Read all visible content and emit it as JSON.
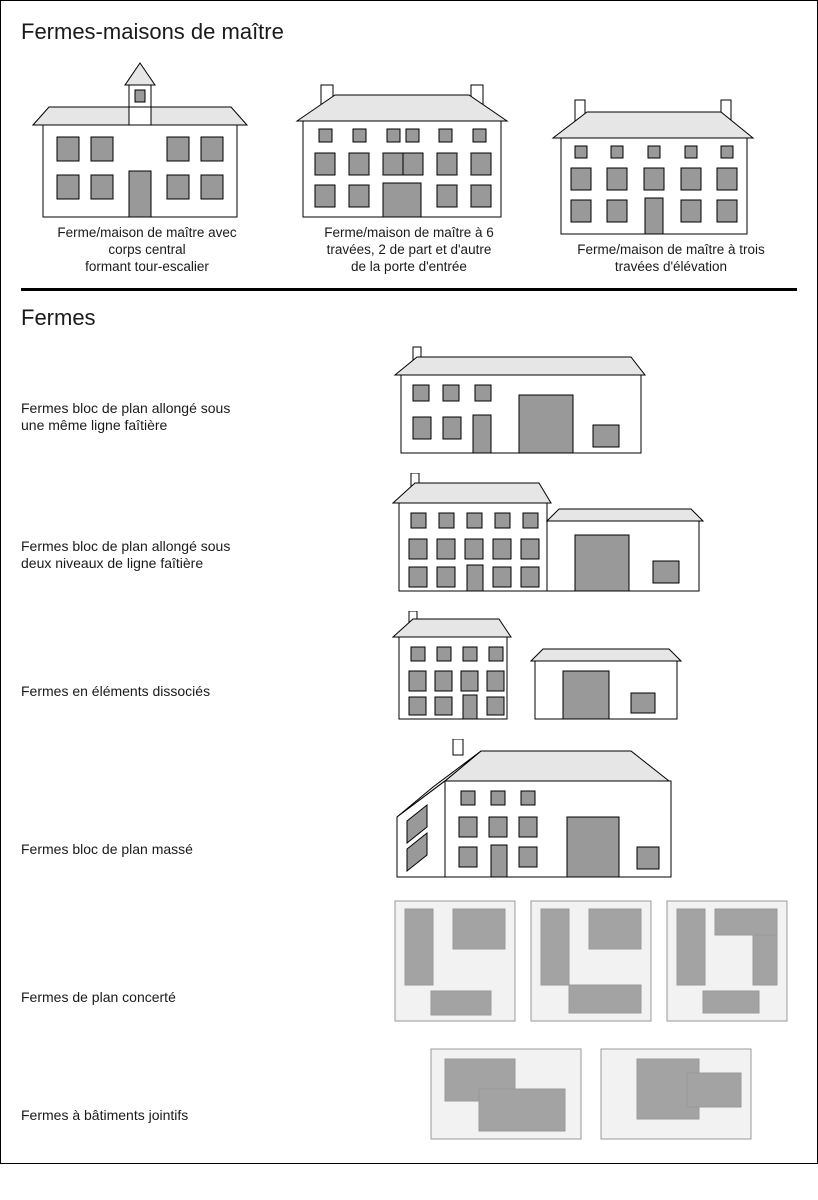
{
  "colors": {
    "stroke": "#000000",
    "roof": "#e6e6e6",
    "window": "#999999",
    "wall": "#ffffff",
    "plan_fill": "#a3a3a3",
    "plan_light": "#f2f2f2",
    "plan_border": "#9a9a9a"
  },
  "typography": {
    "title_fontsize": 22,
    "caption_fontsize": 13.5,
    "label_fontsize": 14
  },
  "sections": {
    "title1": "Fermes-maisons de maître",
    "title2": "Fermes"
  },
  "top_houses": [
    {
      "id": "house-tower",
      "caption": "Ferme/maison de maître avec\ncorps central\nformant tour-escalier"
    },
    {
      "id": "house-6bays",
      "caption": "Ferme/maison de maître à 6\ntravées, 2 de part et d'autre\nde la porte d'entrée"
    },
    {
      "id": "house-3levels",
      "caption": "Ferme/maison de maître à trois\ntravées d'élévation"
    }
  ],
  "ferme_rows": [
    {
      "id": "ferme-allonge",
      "label": "Fermes bloc de plan allongé sous\nune même ligne faîtière"
    },
    {
      "id": "ferme-2niveaux",
      "label": "Fermes bloc de plan allongé sous\ndeux niveaux de ligne faîtière"
    },
    {
      "id": "ferme-dissocies",
      "label": "Fermes en éléments dissociés"
    },
    {
      "id": "ferme-masse",
      "label": "Fermes bloc de plan massé"
    },
    {
      "id": "ferme-concerte",
      "label": "Fermes de plan concerté"
    },
    {
      "id": "ferme-jointifs",
      "label": "Fermes à bâtiments jointifs"
    }
  ]
}
